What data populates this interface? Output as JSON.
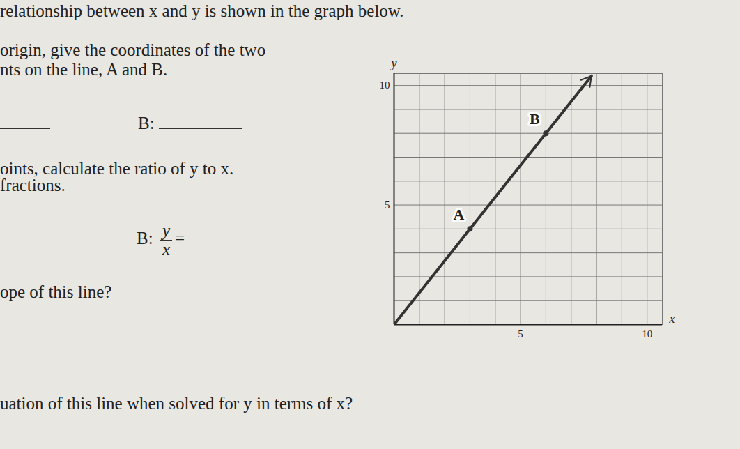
{
  "document": {
    "lines": [
      "relationship between x and y is shown in the graph below.",
      "origin, give the coordinates of the two",
      "nts on the line, A and B.",
      "oints, calculate the ratio of y to x.",
      "fractions.",
      "ope of this line?",
      "uation of this line when solved for y in terms of x?"
    ],
    "answer_b_label": "B:",
    "ratio": {
      "label": "B:",
      "numerator": "y",
      "denominator": "x",
      "equals": "="
    }
  },
  "chart_data": {
    "type": "line",
    "x_label": "x",
    "y_label": "y",
    "x": [
      0,
      7.8
    ],
    "values": [
      0,
      10.4
    ],
    "points": [
      {
        "label": "A",
        "x": 3,
        "y": 4
      },
      {
        "label": "B",
        "x": 6,
        "y": 8
      }
    ],
    "xlim": [
      0,
      10.6
    ],
    "ylim": [
      0,
      10.5
    ],
    "xticks": [
      5,
      10
    ],
    "yticks": [
      5,
      10
    ],
    "grid": true,
    "color": "#333333",
    "marker": "circle"
  }
}
